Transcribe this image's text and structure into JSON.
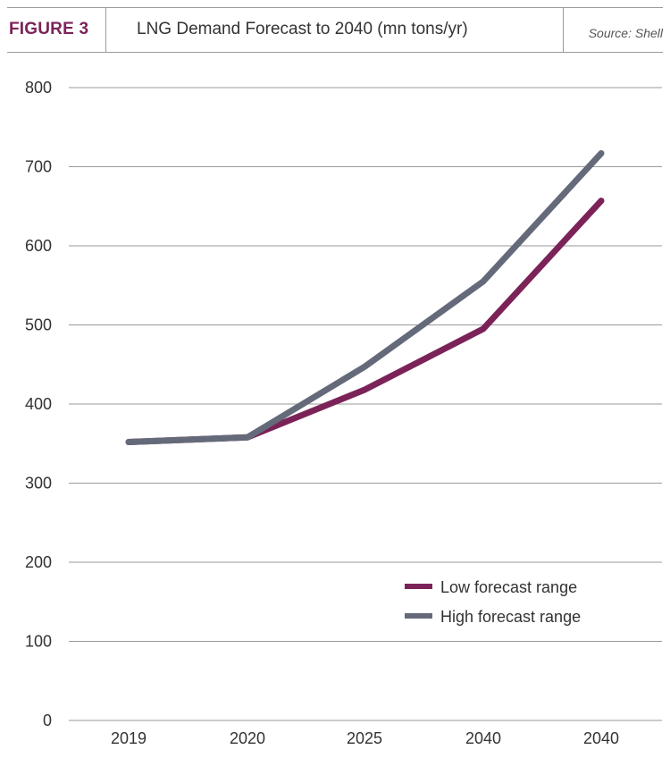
{
  "header": {
    "figure_label": "FIGURE 3",
    "title": "LNG Demand Forecast to 2040 (mn tons/yr)",
    "source": "Source: Shell"
  },
  "colors": {
    "accent": "#7b2358",
    "low": "#7b2358",
    "high": "#646a79",
    "grid": "#9a9a9a"
  },
  "chart_data": {
    "type": "line",
    "title": "LNG Demand Forecast to 2040 (mn tons/yr)",
    "categories": [
      "2019",
      "2020",
      "2025",
      "2040",
      "2040"
    ],
    "series": [
      {
        "name": "Low forecast range",
        "values": [
          352,
          358,
          418,
          495,
          657
        ]
      },
      {
        "name": "High forecast range",
        "values": [
          352,
          358,
          447,
          555,
          717
        ]
      }
    ],
    "yticks": [
      "0",
      "100",
      "200",
      "300",
      "400",
      "500",
      "600",
      "700",
      "800"
    ],
    "ylim": [
      0,
      800
    ],
    "grid": true,
    "legend": [
      "Low forecast range",
      "High forecast range"
    ],
    "legend_position": "bottom-right",
    "xlabel": "",
    "ylabel": ""
  }
}
